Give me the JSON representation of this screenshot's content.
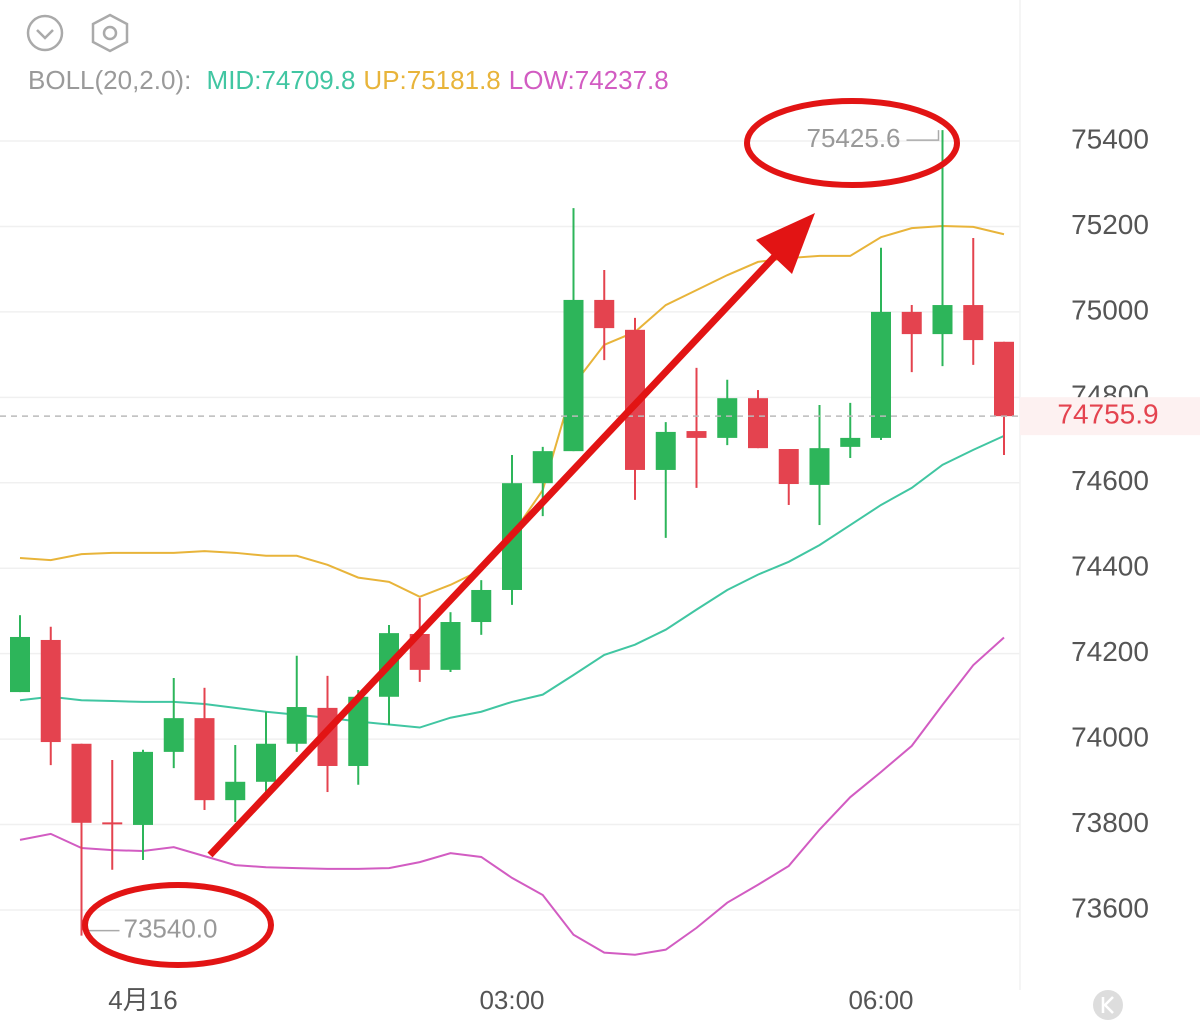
{
  "chart_data": {
    "type": "candlestick",
    "indicator": "BOLL(20,2.0):",
    "categories": [
      null,
      null,
      null,
      null,
      "4月16",
      null,
      null,
      null,
      null,
      null,
      null,
      null,
      null,
      null,
      null,
      null,
      "03:00",
      null,
      null,
      null,
      null,
      null,
      null,
      null,
      null,
      null,
      null,
      null,
      "06:00",
      null,
      null,
      null,
      null
    ],
    "open": [
      74110,
      74232,
      73989,
      73805,
      73799,
      73970,
      74049,
      73857,
      73900,
      73989,
      74073,
      73937,
      74099,
      74246,
      74162,
      74274,
      74349,
      74599,
      74674,
      75028,
      74958,
      74630,
      74721,
      74705,
      74798,
      74679,
      74595,
      74684,
      74705,
      75000,
      74948,
      75016,
      74930
    ],
    "high": [
      74290,
      74263,
      73989,
      73951,
      73975,
      74143,
      74120,
      73986,
      74064,
      74195,
      74148,
      74115,
      74267,
      74330,
      74297,
      74372,
      74665,
      74684,
      75243,
      75098,
      74986,
      74742,
      74869,
      74841,
      74817,
      74679,
      74782,
      74787,
      75150,
      75016,
      75425.6,
      75173,
      74930
    ],
    "low": [
      74110,
      73939,
      73540,
      73694,
      73717,
      73932,
      73834,
      73806,
      73857,
      73970,
      73876,
      73893,
      74033,
      74134,
      74157,
      74244,
      74314,
      74522,
      74674,
      74887,
      74560,
      74471,
      74588,
      74688,
      74681,
      74548,
      74501,
      74658,
      74700,
      74859,
      74873,
      74876,
      74665
    ],
    "close": [
      74239,
      73993,
      73804,
      73801,
      73970,
      74049,
      73857,
      73900,
      73989,
      74075,
      73937,
      74099,
      74248,
      74162,
      74274,
      74349,
      74599,
      74674,
      75028,
      74962,
      74630,
      74719,
      74705,
      74798,
      74681,
      74597,
      74681,
      74705,
      75000,
      74948,
      75016,
      74934,
      74755.9
    ],
    "up_color": "#2db55a",
    "down_color": "#e4434f",
    "max_label": {
      "candle": 30,
      "label": "75425.6"
    },
    "min_label": {
      "candle": 2,
      "label": "73540.0"
    },
    "series": [
      {
        "name": "MID:",
        "color": "#41c6a2",
        "values": [
          74091,
          74099,
          74091,
          74089,
          74087,
          74087,
          74082,
          74073,
          74064,
          74057,
          74050,
          74041,
          74034,
          74027,
          74050,
          74064,
          74087,
          74104,
          74150,
          74197,
          74221,
          74256,
          74303,
          74349,
          74385,
          74415,
          74454,
          74501,
          74548,
          74588,
          74642,
          74677,
          74709.8
        ]
      },
      {
        "name": "UP:",
        "color": "#e8b43a",
        "values": [
          74424,
          74419,
          74433,
          74436,
          74436,
          74436,
          74440,
          74436,
          74429,
          74429,
          74408,
          74378,
          74368,
          74333,
          74361,
          74396,
          74478,
          74583,
          74829,
          74923,
          74953,
          75016,
          75051,
          75086,
          75117,
          75126,
          75131,
          75131,
          75175,
          75196,
          75201,
          75199,
          75181.8
        ]
      },
      {
        "name": "LOW:",
        "color": "#d25cc2",
        "values": [
          73764,
          73778,
          73745,
          73740,
          73738,
          73747,
          73726,
          73705,
          73700,
          73698,
          73696,
          73696,
          73698,
          73712,
          73733,
          73724,
          73675,
          73635,
          73542,
          73500,
          73495,
          73507,
          73558,
          73617,
          73659,
          73703,
          73788,
          73864,
          73923,
          73984,
          74080,
          74173,
          74237.8
        ]
      }
    ],
    "ylim": [
      73436,
      75496
    ],
    "yticks": [
      73600,
      73800,
      74000,
      74200,
      74400,
      74600,
      74800,
      75000,
      75200,
      75400
    ],
    "grid": true
  }
}
